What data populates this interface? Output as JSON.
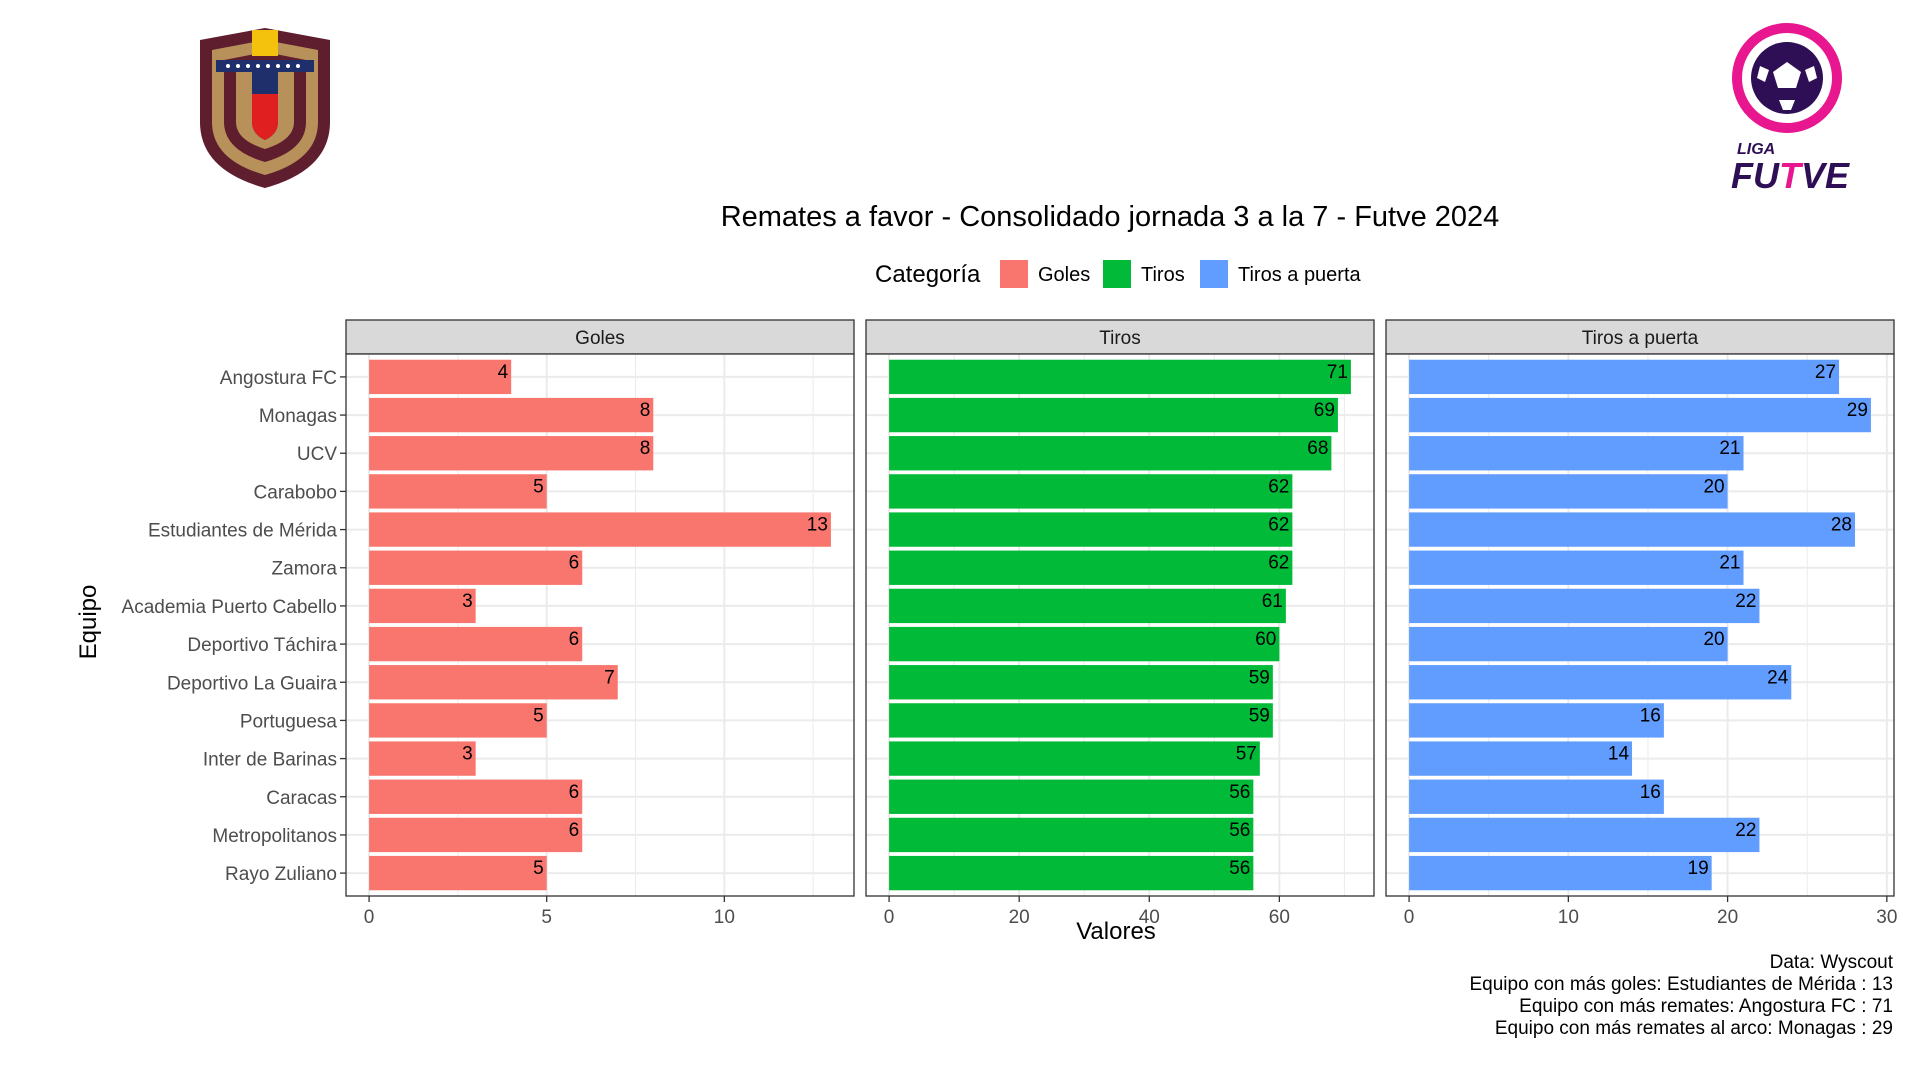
{
  "chart_data": {
    "type": "bar",
    "orientation": "horizontal",
    "title": "Remates a favor - Consolidado jornada 3 a la 7 - Futve 2024",
    "xlabel": "Valores",
    "ylabel": "Equipo",
    "legend": {
      "title": "Categoría",
      "placement": "top",
      "entries": [
        "Goles",
        "Tiros",
        "Tiros a puerta"
      ]
    },
    "grid": true,
    "categories": [
      "Angostura FC",
      "Monagas",
      "UCV",
      "Carabobo",
      "Estudiantes de Mérida",
      "Zamora",
      "Academia Puerto Cabello",
      "Deportivo Táchira",
      "Deportivo La Guaira",
      "Portuguesa",
      "Inter de Barinas",
      "Caracas",
      "Metropolitanos",
      "Rayo Zuliano"
    ],
    "panels": [
      {
        "name": "Goles",
        "color": "#F8766D",
        "values": [
          4,
          8,
          8,
          5,
          13,
          6,
          3,
          6,
          7,
          5,
          3,
          6,
          6,
          5
        ],
        "xlim": [
          -0.65,
          13.65
        ],
        "ticks": [
          0,
          5,
          10
        ],
        "minor_ticks": [
          2.5,
          7.5,
          12.5
        ]
      },
      {
        "name": "Tiros",
        "color": "#00BA38",
        "values": [
          71,
          69,
          68,
          62,
          62,
          62,
          61,
          60,
          59,
          59,
          57,
          56,
          56,
          56
        ],
        "xlim": [
          -3.55,
          74.55
        ],
        "ticks": [
          0,
          20,
          40,
          60
        ],
        "minor_ticks": [
          10,
          30,
          50,
          70
        ]
      },
      {
        "name": "Tiros a puerta",
        "color": "#619CFF",
        "values": [
          27,
          29,
          21,
          20,
          28,
          21,
          22,
          20,
          24,
          16,
          14,
          16,
          22,
          19
        ],
        "xlim": [
          -1.45,
          30.45
        ],
        "ticks": [
          0,
          10,
          20,
          30
        ],
        "minor_ticks": [
          5,
          15,
          25
        ]
      }
    ],
    "caption": [
      "Data: Wyscout",
      "Equipo con más goles: Estudiantes de Mérida : 13",
      "Equipo con más remates: Angostura FC : 71",
      "Equipo con más remates al arco: Monagas : 29"
    ]
  },
  "logos": {
    "left": "Venezuelan football federation crest",
    "right": {
      "top_text": "LIGA",
      "bottom_text": "FUTVE",
      "ring_color": "#E8168F",
      "ball_color": "#2E0F55"
    }
  }
}
